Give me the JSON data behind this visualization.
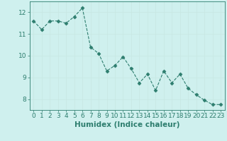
{
  "x": [
    0,
    1,
    2,
    3,
    4,
    5,
    6,
    7,
    8,
    9,
    10,
    11,
    12,
    13,
    14,
    15,
    16,
    17,
    18,
    19,
    20,
    21,
    22,
    23
  ],
  "y": [
    11.6,
    11.2,
    11.6,
    11.6,
    11.5,
    11.8,
    12.2,
    10.4,
    10.1,
    9.3,
    9.55,
    9.95,
    9.4,
    8.75,
    9.15,
    8.4,
    9.3,
    8.75,
    9.15,
    8.5,
    8.2,
    7.95,
    7.75,
    7.75
  ],
  "line_color": "#2d7d6e",
  "marker": "D",
  "marker_size": 2.5,
  "bg_color": "#cff0ee",
  "grid_color": "#c8e8e4",
  "xlabel": "Humidex (Indice chaleur)",
  "xlim": [
    -0.5,
    23.5
  ],
  "ylim": [
    7.5,
    12.5
  ],
  "yticks": [
    8,
    9,
    10,
    11,
    12
  ],
  "xticks": [
    0,
    1,
    2,
    3,
    4,
    5,
    6,
    7,
    8,
    9,
    10,
    11,
    12,
    13,
    14,
    15,
    16,
    17,
    18,
    19,
    20,
    21,
    22,
    23
  ],
  "tick_color": "#2d7d6e",
  "label_color": "#2d7d6e",
  "font_size_xlabel": 7.5,
  "font_size_ticks": 6.5
}
